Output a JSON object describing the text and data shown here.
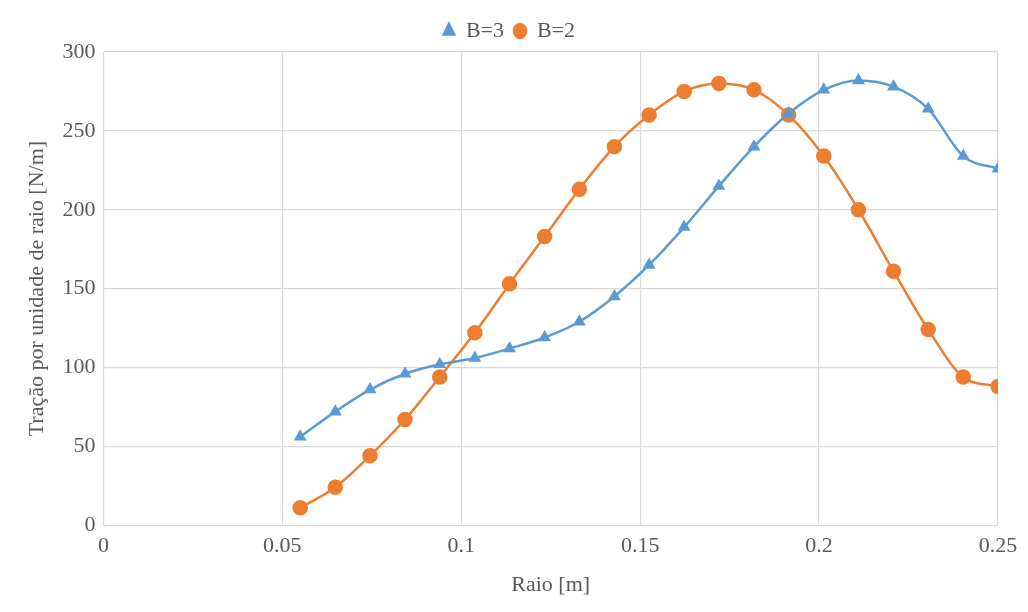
{
  "chart_data": {
    "type": "line",
    "xlabel": "Raio [m]",
    "ylabel": "Tração por unidade de raio [N/m]",
    "x": [
      0.055,
      0.0648,
      0.0745,
      0.0843,
      0.094,
      0.1038,
      0.1135,
      0.1233,
      0.133,
      0.1428,
      0.1525,
      0.1623,
      0.172,
      0.1818,
      0.1915,
      0.2013,
      0.211,
      0.2208,
      0.2305,
      0.2403,
      0.25
    ],
    "series": [
      {
        "name": "B=3",
        "color": "#5b9bd5",
        "marker": "triangle",
        "values": [
          56,
          72,
          86,
          96,
          102,
          106,
          112,
          119,
          129,
          145,
          165,
          189,
          215,
          240,
          261,
          276,
          282,
          278,
          264,
          234,
          226
        ]
      },
      {
        "name": "B=2",
        "color": "#ed7d31",
        "marker": "circle",
        "values": [
          11,
          24,
          44,
          67,
          94,
          122,
          153,
          183,
          213,
          240,
          260,
          275,
          280,
          276,
          260,
          234,
          200,
          161,
          124,
          94,
          88
        ]
      }
    ],
    "xlim": [
      0,
      0.25
    ],
    "xticks": [
      0,
      0.05,
      0.1,
      0.15,
      0.2,
      0.25
    ],
    "ylim": [
      0,
      300
    ],
    "yticks": [
      0,
      50,
      100,
      150,
      200,
      250,
      300
    ],
    "grid": true,
    "legend": "top",
    "line_style": "solid"
  }
}
